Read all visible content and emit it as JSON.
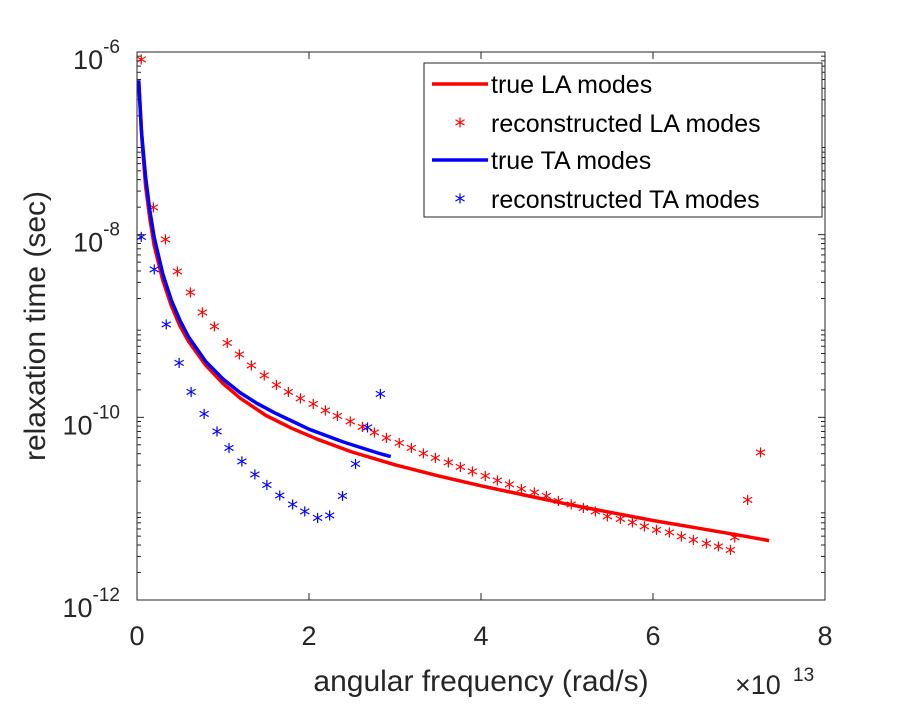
{
  "chart_data": {
    "type": "line",
    "title": "",
    "xlabel": "angular frequency (rad/s)",
    "ylabel": "relaxation time (sec)",
    "x_multiplier_label": "×10",
    "x_multiplier_exp": "13",
    "xlim": [
      0,
      8
    ],
    "ylim_log10": [
      -12,
      -6
    ],
    "x_ticks": [
      {
        "value": 0,
        "label": "0"
      },
      {
        "value": 2,
        "label": "2"
      },
      {
        "value": 4,
        "label": "4"
      },
      {
        "value": 6,
        "label": "6"
      },
      {
        "value": 8,
        "label": "8"
      }
    ],
    "y_ticks": [
      {
        "value": -12,
        "base": "10",
        "exp": "-12"
      },
      {
        "value": -10,
        "base": "10",
        "exp": "-10"
      },
      {
        "value": -8,
        "base": "10",
        "exp": "-8"
      },
      {
        "value": -6,
        "base": "10",
        "exp": "-6"
      }
    ],
    "legend_position": "top-right",
    "series": [
      {
        "name": "true LA modes",
        "kind": "line",
        "color": "#ff0000",
        "x": [
          0.02,
          0.06,
          0.1,
          0.15,
          0.2,
          0.3,
          0.4,
          0.5,
          0.6,
          0.8,
          1.0,
          1.2,
          1.5,
          1.8,
          2.1,
          2.5,
          3.0,
          3.5,
          4.0,
          4.5,
          5.0,
          5.5,
          6.0,
          6.5,
          7.0,
          7.35
        ],
        "y_log10": [
          -6.31,
          -7.0,
          -7.47,
          -7.83,
          -8.12,
          -8.5,
          -8.78,
          -9.0,
          -9.17,
          -9.43,
          -9.63,
          -9.79,
          -9.98,
          -10.12,
          -10.24,
          -10.38,
          -10.52,
          -10.64,
          -10.75,
          -10.85,
          -10.95,
          -11.04,
          -11.13,
          -11.21,
          -11.29,
          -11.35
        ]
      },
      {
        "name": "reconstructed LA modes",
        "kind": "scatter",
        "color": "#ff0000",
        "x": [
          0.05,
          0.19,
          0.33,
          0.47,
          0.62,
          0.76,
          0.9,
          1.05,
          1.19,
          1.33,
          1.48,
          1.62,
          1.76,
          1.9,
          2.05,
          2.19,
          2.33,
          2.48,
          2.62,
          2.76,
          2.9,
          3.05,
          3.19,
          3.33,
          3.47,
          3.62,
          3.76,
          3.9,
          4.05,
          4.19,
          4.33,
          4.47,
          4.62,
          4.76,
          4.9,
          5.05,
          5.19,
          5.33,
          5.47,
          5.62,
          5.76,
          5.9,
          6.04,
          6.19,
          6.33,
          6.47,
          6.62,
          6.76,
          6.9,
          6.95,
          7.1,
          7.25
        ],
        "y_log10": [
          -6.1,
          -7.72,
          -8.07,
          -8.42,
          -8.65,
          -8.87,
          -9.02,
          -9.2,
          -9.33,
          -9.45,
          -9.56,
          -9.66,
          -9.74,
          -9.81,
          -9.87,
          -9.94,
          -10.0,
          -10.06,
          -10.12,
          -10.18,
          -10.24,
          -10.3,
          -10.35,
          -10.41,
          -10.46,
          -10.51,
          -10.56,
          -10.61,
          -10.66,
          -10.71,
          -10.75,
          -10.8,
          -10.84,
          -10.88,
          -10.93,
          -10.97,
          -11.01,
          -11.05,
          -11.1,
          -11.13,
          -11.17,
          -11.21,
          -11.25,
          -11.28,
          -11.32,
          -11.36,
          -11.4,
          -11.43,
          -11.47,
          -11.33,
          -10.92,
          -10.4
        ]
      },
      {
        "name": "true TA modes",
        "kind": "line",
        "color": "#0000ff",
        "x": [
          0.02,
          0.05,
          0.1,
          0.15,
          0.2,
          0.3,
          0.4,
          0.5,
          0.6,
          0.8,
          1.0,
          1.2,
          1.4,
          1.6,
          1.8,
          2.0,
          2.2,
          2.4,
          2.6,
          2.8,
          2.95
        ],
        "y_log10": [
          -6.31,
          -6.85,
          -7.37,
          -7.74,
          -8.03,
          -8.43,
          -8.72,
          -8.94,
          -9.12,
          -9.39,
          -9.58,
          -9.73,
          -9.85,
          -9.95,
          -10.04,
          -10.13,
          -10.2,
          -10.27,
          -10.33,
          -10.39,
          -10.43
        ]
      },
      {
        "name": "reconstructed TA modes",
        "kind": "scatter",
        "color": "#0000ff",
        "x": [
          0.05,
          0.2,
          0.34,
          0.49,
          0.63,
          0.78,
          0.93,
          1.07,
          1.22,
          1.37,
          1.51,
          1.66,
          1.81,
          1.95,
          2.1,
          2.24,
          2.39,
          2.54,
          2.68,
          2.83
        ],
        "y_log10": [
          -8.04,
          -8.4,
          -9.0,
          -9.42,
          -9.74,
          -9.98,
          -10.17,
          -10.35,
          -10.5,
          -10.64,
          -10.76,
          -10.87,
          -10.97,
          -11.05,
          -11.12,
          -11.09,
          -10.88,
          -10.53,
          -10.13,
          -9.76
        ]
      }
    ]
  }
}
